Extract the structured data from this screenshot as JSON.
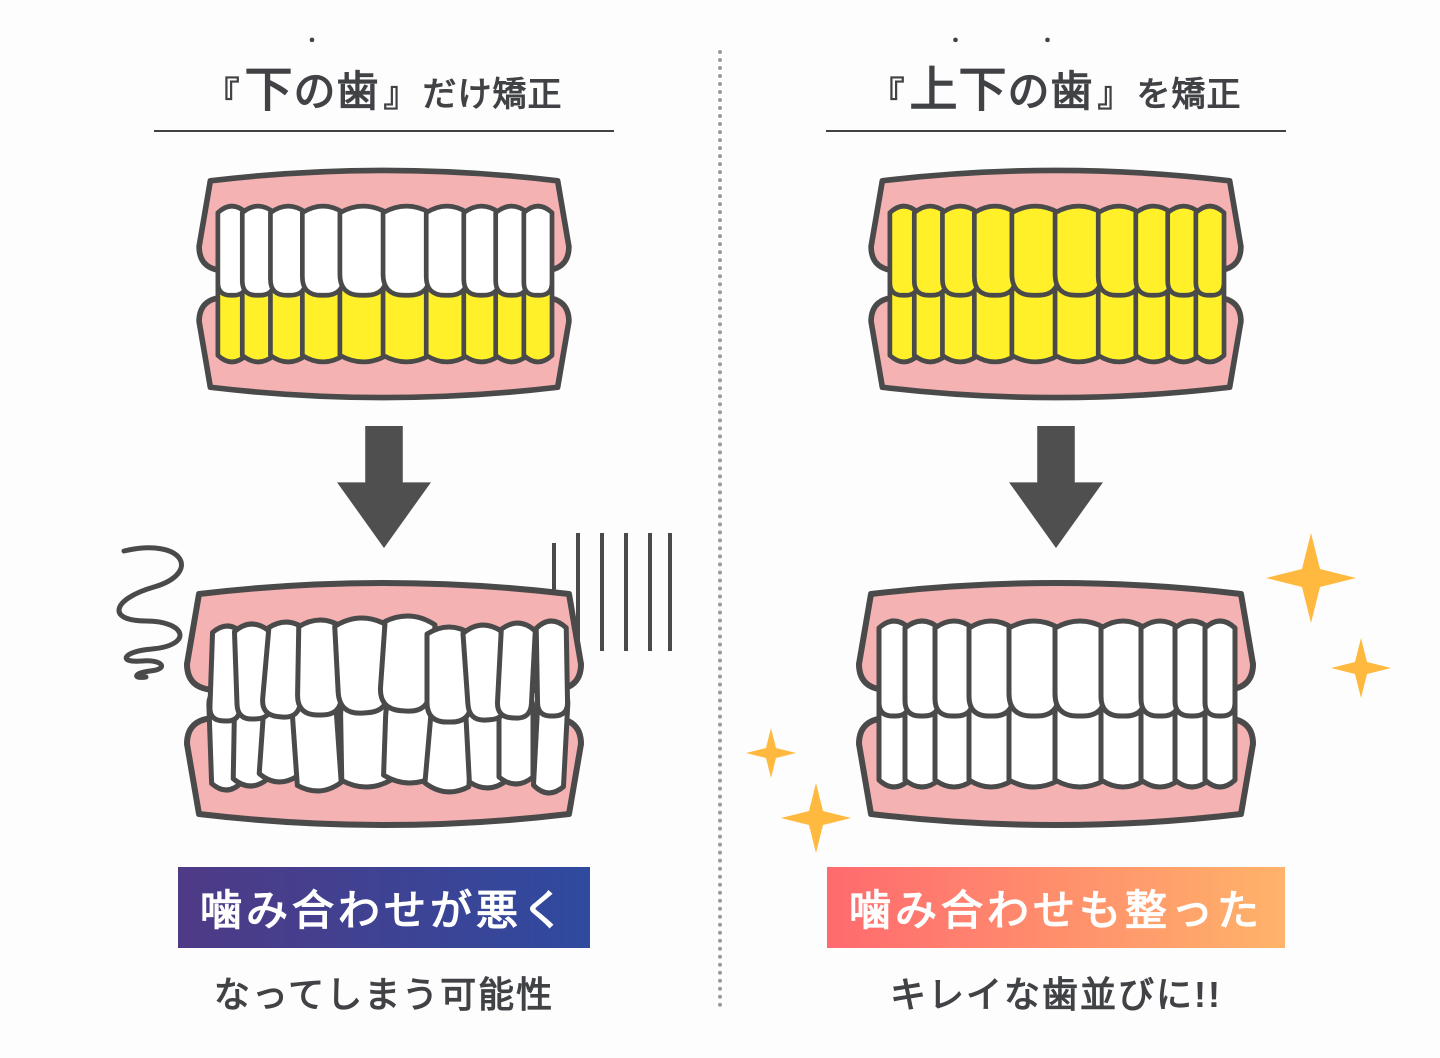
{
  "colors": {
    "text": "#404245",
    "divider": "#9a9a9a",
    "arrow": "#4f4f4f",
    "outline": "#4a4a4a",
    "gum": "#f4b2b3",
    "tooth_white": "#ffffff",
    "tooth_hl": "#fff02a",
    "sparkle": "#ffb93e",
    "badge_left_from": "#4f3a86",
    "badge_left_to": "#2f4a9f",
    "badge_right_from": "#ff6a6f",
    "badge_right_to": "#ffb36a",
    "badge_text": "#ffffff"
  },
  "left": {
    "title_emph": "下",
    "title_tail": "の歯",
    "title_rest": "だけ矯正",
    "emph_dot_count": 1,
    "before": {
      "upper_highlight": false,
      "lower_highlight": true,
      "misaligned": false
    },
    "after": {
      "upper_highlight": false,
      "lower_highlight": false,
      "misaligned": true
    },
    "badge": "噛み合わせが悪く",
    "subtext": "なってしまう可能性"
  },
  "right": {
    "title_emph": "上下",
    "title_tail": "の歯",
    "title_rest": "を矯正",
    "emph_dot_count": 2,
    "before": {
      "upper_highlight": true,
      "lower_highlight": true,
      "misaligned": false
    },
    "after": {
      "upper_highlight": false,
      "lower_highlight": false,
      "misaligned": false
    },
    "badge": "噛み合わせも整った",
    "subtext": "キレイな歯並びに!!"
  }
}
